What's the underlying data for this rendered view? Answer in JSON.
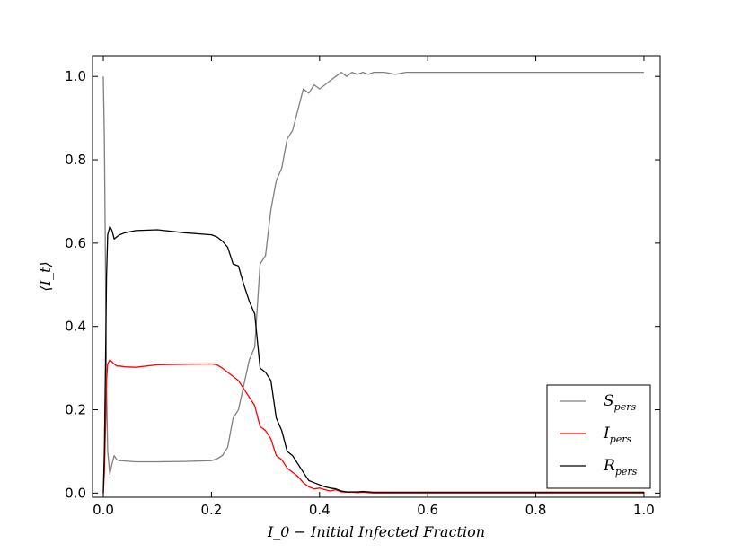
{
  "chart_data": {
    "type": "line",
    "xlabel": "I_0 − Initial Infected Fraction",
    "ylabel": "⟨I_t⟩",
    "xlim": [
      -0.02,
      1.03
    ],
    "ylim": [
      -0.01,
      1.05
    ],
    "xticks": [
      "0.0",
      "0.2",
      "0.4",
      "0.6",
      "0.8",
      "1.0"
    ],
    "xtick_values": [
      0.0,
      0.2,
      0.4,
      0.6,
      0.8,
      1.0
    ],
    "yticks": [
      "0.0",
      "0.2",
      "0.4",
      "0.6",
      "0.8",
      "1.0"
    ],
    "ytick_values": [
      0.0,
      0.2,
      0.4,
      0.6,
      0.8,
      1.0
    ],
    "grid": false,
    "legend_position": "bottom-right",
    "series": [
      {
        "name": "S_pers",
        "legend_main": "S",
        "legend_sub": "pers",
        "color": "#808080",
        "x": [
          0.0,
          0.002,
          0.004,
          0.006,
          0.008,
          0.012,
          0.016,
          0.02,
          0.025,
          0.03,
          0.04,
          0.06,
          0.1,
          0.15,
          0.2,
          0.21,
          0.22,
          0.23,
          0.24,
          0.25,
          0.26,
          0.27,
          0.28,
          0.29,
          0.3,
          0.31,
          0.32,
          0.33,
          0.34,
          0.35,
          0.36,
          0.37,
          0.38,
          0.39,
          0.4,
          0.41,
          0.42,
          0.43,
          0.44,
          0.45,
          0.46,
          0.47,
          0.48,
          0.49,
          0.5,
          0.52,
          0.54,
          0.56,
          0.6,
          0.7,
          0.8,
          0.9,
          1.0
        ],
        "y": [
          1.0,
          0.85,
          0.55,
          0.25,
          0.1,
          0.045,
          0.07,
          0.09,
          0.08,
          0.078,
          0.077,
          0.075,
          0.075,
          0.076,
          0.078,
          0.082,
          0.09,
          0.11,
          0.18,
          0.2,
          0.26,
          0.32,
          0.35,
          0.55,
          0.57,
          0.68,
          0.75,
          0.78,
          0.85,
          0.87,
          0.92,
          0.97,
          0.96,
          0.98,
          0.97,
          0.98,
          0.99,
          1.0,
          1.01,
          1.0,
          1.01,
          1.005,
          1.01,
          1.005,
          1.01,
          1.01,
          1.005,
          1.01,
          1.01,
          1.01,
          1.01,
          1.01,
          1.01
        ]
      },
      {
        "name": "I_pers",
        "legend_main": "I",
        "legend_sub": "pers",
        "color": "#ff0000",
        "x": [
          0.0,
          0.002,
          0.004,
          0.006,
          0.008,
          0.012,
          0.016,
          0.02,
          0.025,
          0.03,
          0.04,
          0.06,
          0.1,
          0.15,
          0.2,
          0.21,
          0.22,
          0.23,
          0.24,
          0.25,
          0.26,
          0.27,
          0.28,
          0.29,
          0.3,
          0.31,
          0.32,
          0.33,
          0.34,
          0.35,
          0.36,
          0.37,
          0.38,
          0.39,
          0.4,
          0.41,
          0.42,
          0.43,
          0.44,
          0.45,
          0.46,
          0.47,
          0.48,
          0.49,
          0.5,
          0.52,
          0.54,
          0.56,
          0.6,
          0.7,
          0.8,
          0.9,
          1.0
        ],
        "y": [
          0.0,
          0.05,
          0.15,
          0.27,
          0.31,
          0.32,
          0.315,
          0.31,
          0.305,
          0.305,
          0.303,
          0.302,
          0.308,
          0.309,
          0.31,
          0.308,
          0.3,
          0.29,
          0.28,
          0.27,
          0.25,
          0.23,
          0.21,
          0.16,
          0.15,
          0.13,
          0.09,
          0.08,
          0.06,
          0.05,
          0.04,
          0.025,
          0.015,
          0.01,
          0.012,
          0.008,
          0.005,
          0.008,
          0.003,
          0.002,
          0.002,
          0.001,
          0.002,
          0.001,
          0.0,
          0.0,
          0.0,
          0.0,
          0.0,
          0.0,
          0.0,
          0.0,
          0.0
        ]
      },
      {
        "name": "R_pers",
        "legend_main": "R",
        "legend_sub": "pers",
        "color": "#000000",
        "x": [
          0.0,
          0.002,
          0.004,
          0.006,
          0.008,
          0.012,
          0.016,
          0.02,
          0.025,
          0.03,
          0.04,
          0.06,
          0.1,
          0.15,
          0.2,
          0.21,
          0.22,
          0.23,
          0.24,
          0.25,
          0.26,
          0.27,
          0.28,
          0.29,
          0.3,
          0.31,
          0.32,
          0.33,
          0.34,
          0.35,
          0.36,
          0.37,
          0.38,
          0.39,
          0.4,
          0.41,
          0.42,
          0.43,
          0.44,
          0.45,
          0.46,
          0.47,
          0.48,
          0.49,
          0.5,
          0.52,
          0.54,
          0.56,
          0.6,
          0.7,
          0.8,
          0.9,
          1.0
        ],
        "y": [
          0.0,
          0.1,
          0.3,
          0.52,
          0.62,
          0.64,
          0.63,
          0.61,
          0.615,
          0.62,
          0.625,
          0.63,
          0.632,
          0.625,
          0.62,
          0.615,
          0.605,
          0.59,
          0.55,
          0.545,
          0.5,
          0.46,
          0.43,
          0.3,
          0.29,
          0.27,
          0.18,
          0.15,
          0.1,
          0.09,
          0.07,
          0.05,
          0.03,
          0.025,
          0.02,
          0.015,
          0.012,
          0.01,
          0.005,
          0.003,
          0.003,
          0.003,
          0.004,
          0.003,
          0.002,
          0.002,
          0.002,
          0.002,
          0.002,
          0.002,
          0.002,
          0.002,
          0.002
        ]
      }
    ]
  }
}
